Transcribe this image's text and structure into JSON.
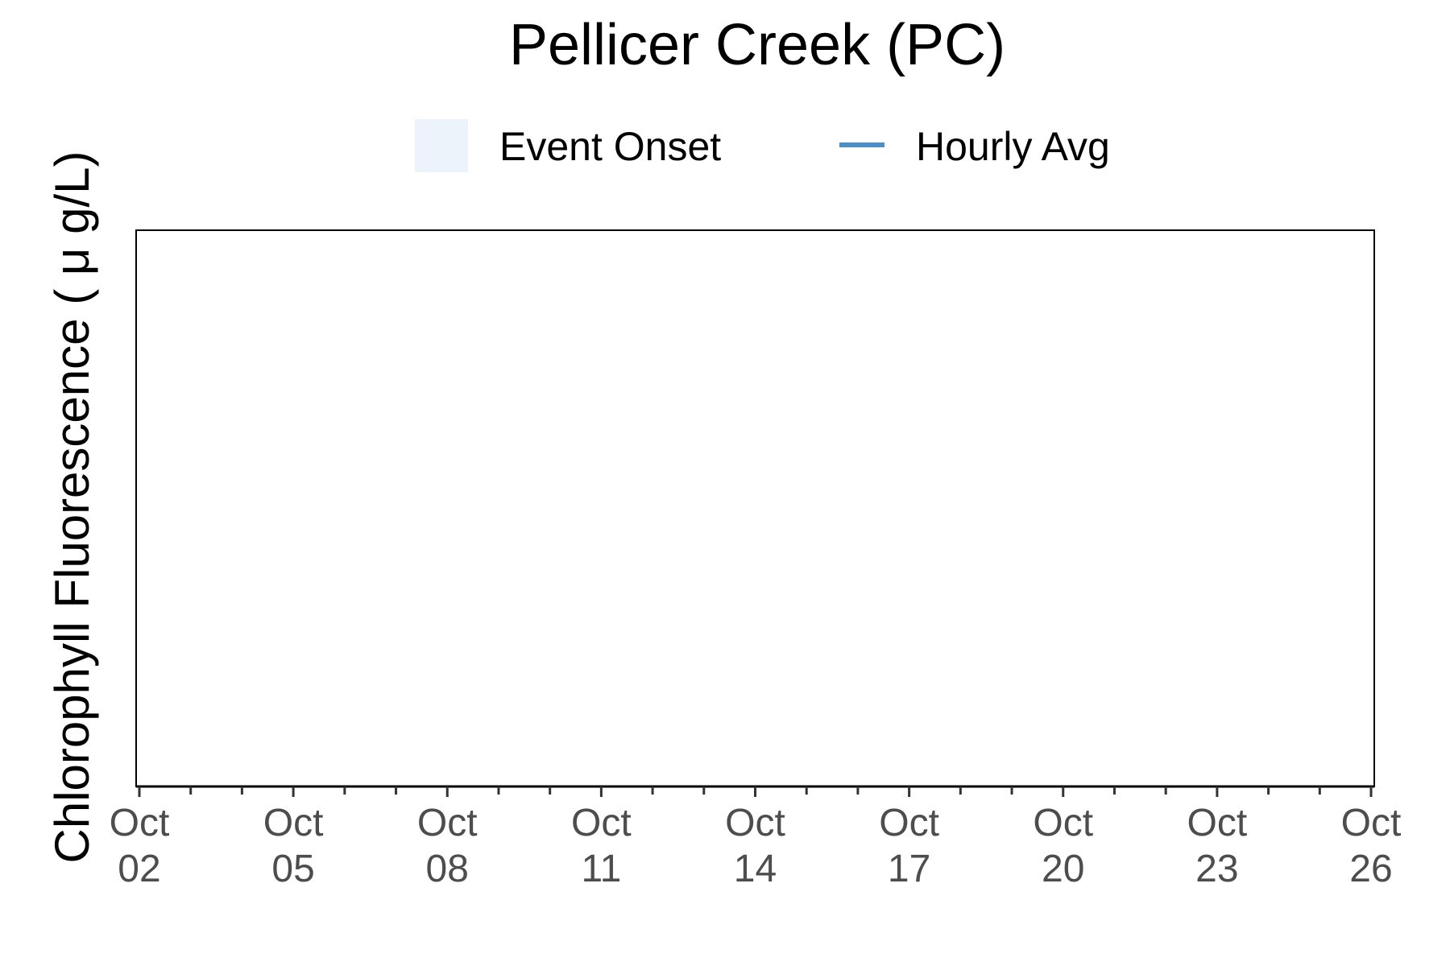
{
  "chart_data": {
    "type": "line",
    "title": "Pellicer Creek (PC)",
    "xlabel": "",
    "ylabel": "Chlorophyll Fluorescence ( μ g/L)",
    "legend": {
      "placement": "top",
      "entries": [
        {
          "label": "Event Onset",
          "kind": "fill",
          "color": "#ecf3fa"
        },
        {
          "label": "Hourly Avg",
          "kind": "line",
          "color": "#4a8fcc"
        }
      ]
    },
    "x_axis": {
      "kind": "date",
      "range": [
        "2023-10-02",
        "2023-10-26"
      ],
      "major_ticks": [
        {
          "date": "2023-10-02",
          "label": [
            "Oct",
            "02"
          ]
        },
        {
          "date": "2023-10-05",
          "label": [
            "Oct",
            "05"
          ]
        },
        {
          "date": "2023-10-08",
          "label": [
            "Oct",
            "08"
          ]
        },
        {
          "date": "2023-10-11",
          "label": [
            "Oct",
            "11"
          ]
        },
        {
          "date": "2023-10-14",
          "label": [
            "Oct",
            "14"
          ]
        },
        {
          "date": "2023-10-17",
          "label": [
            "Oct",
            "17"
          ]
        },
        {
          "date": "2023-10-20",
          "label": [
            "Oct",
            "20"
          ]
        },
        {
          "date": "2023-10-23",
          "label": [
            "Oct",
            "23"
          ]
        },
        {
          "date": "2023-10-26",
          "label": [
            "Oct",
            "26"
          ]
        }
      ],
      "minor_tick_every_days": 1
    },
    "grid": false,
    "series": [
      {
        "name": "Hourly Avg",
        "color": "#4a8fcc",
        "points": []
      }
    ],
    "event_onsets": []
  }
}
